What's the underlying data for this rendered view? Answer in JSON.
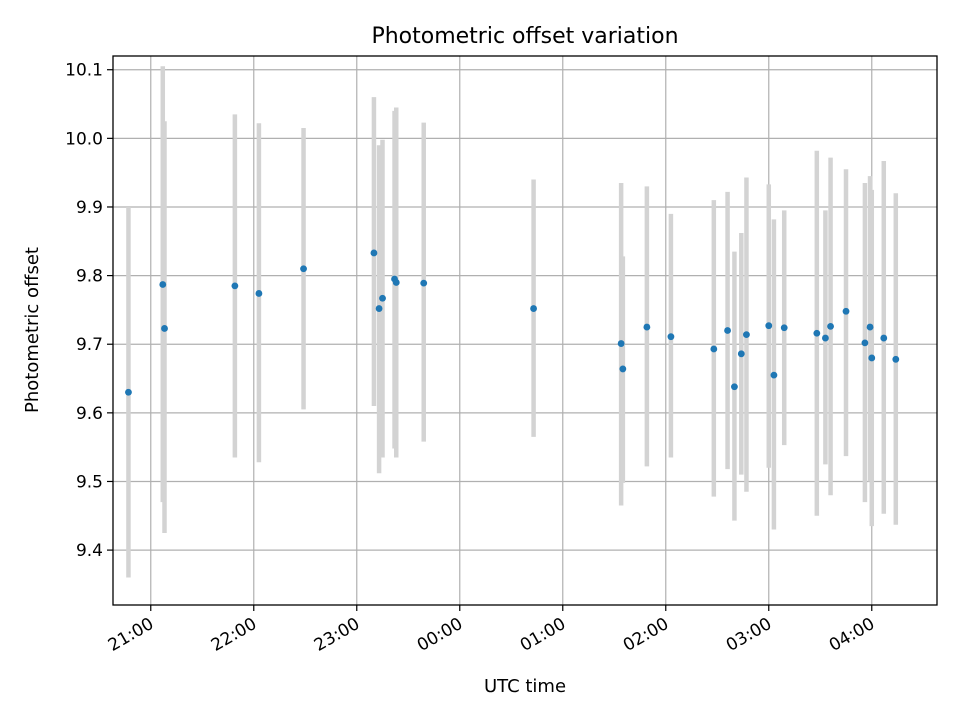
{
  "chart_data": {
    "type": "scatter",
    "title": "Photometric offset variation",
    "xlabel": "UTC time",
    "ylabel": "Photometric offset",
    "xlim": [
      "20:38",
      "28:38"
    ],
    "ylim": [
      9.32,
      10.12
    ],
    "grid": true,
    "x_ticks": [
      "21:00",
      "22:00",
      "23:00",
      "00:00",
      "01:00",
      "02:00",
      "03:00",
      "04:00"
    ],
    "y_ticks": [
      9.4,
      9.5,
      9.6,
      9.7,
      9.8,
      9.9,
      10.0,
      10.1
    ],
    "colors": {
      "points": "#1f77b4",
      "error_bars": "#d3d3d3",
      "grid": "#b0b0b0"
    },
    "series": [
      {
        "x": [
          "20:47",
          "21:07",
          "21:08",
          "21:49",
          "22:03",
          "22:29",
          "23:10",
          "23:13",
          "23:15",
          "23:22",
          "23:23",
          "23:39",
          "00:43",
          "01:34",
          "01:35",
          "01:49",
          "02:03",
          "02:28",
          "02:36",
          "02:40",
          "02:44",
          "02:47",
          "03:00",
          "03:03",
          "03:09",
          "03:28",
          "03:33",
          "03:36",
          "03:45",
          "03:56",
          "03:59",
          "04:00",
          "04:07",
          "04:14"
        ],
        "y": [
          9.63,
          9.787,
          9.723,
          9.785,
          9.774,
          9.81,
          9.833,
          9.752,
          9.767,
          9.795,
          9.79,
          9.789,
          9.752,
          9.701,
          9.664,
          9.725,
          9.711,
          9.693,
          9.72,
          9.638,
          9.686,
          9.714,
          9.727,
          9.655,
          9.724,
          9.716,
          9.709,
          9.726,
          9.748,
          9.702,
          9.725,
          9.68,
          9.709,
          9.678
        ],
        "y_low": [
          9.36,
          9.47,
          9.425,
          9.535,
          9.528,
          9.605,
          9.61,
          9.512,
          9.535,
          9.548,
          9.535,
          9.558,
          9.565,
          9.465,
          9.498,
          9.522,
          9.535,
          9.478,
          9.518,
          9.443,
          9.51,
          9.485,
          9.52,
          9.43,
          9.553,
          9.45,
          9.525,
          9.48,
          9.537,
          9.47,
          9.5,
          9.435,
          9.453,
          9.437
        ],
        "y_high": [
          9.9,
          10.105,
          10.025,
          10.035,
          10.022,
          10.015,
          10.06,
          9.99,
          9.998,
          10.04,
          10.045,
          10.023,
          9.94,
          9.935,
          9.828,
          9.93,
          9.89,
          9.91,
          9.922,
          9.835,
          9.862,
          9.943,
          9.933,
          9.882,
          9.895,
          9.982,
          9.895,
          9.972,
          9.955,
          9.935,
          9.945,
          9.925,
          9.967,
          9.92
        ]
      }
    ]
  }
}
